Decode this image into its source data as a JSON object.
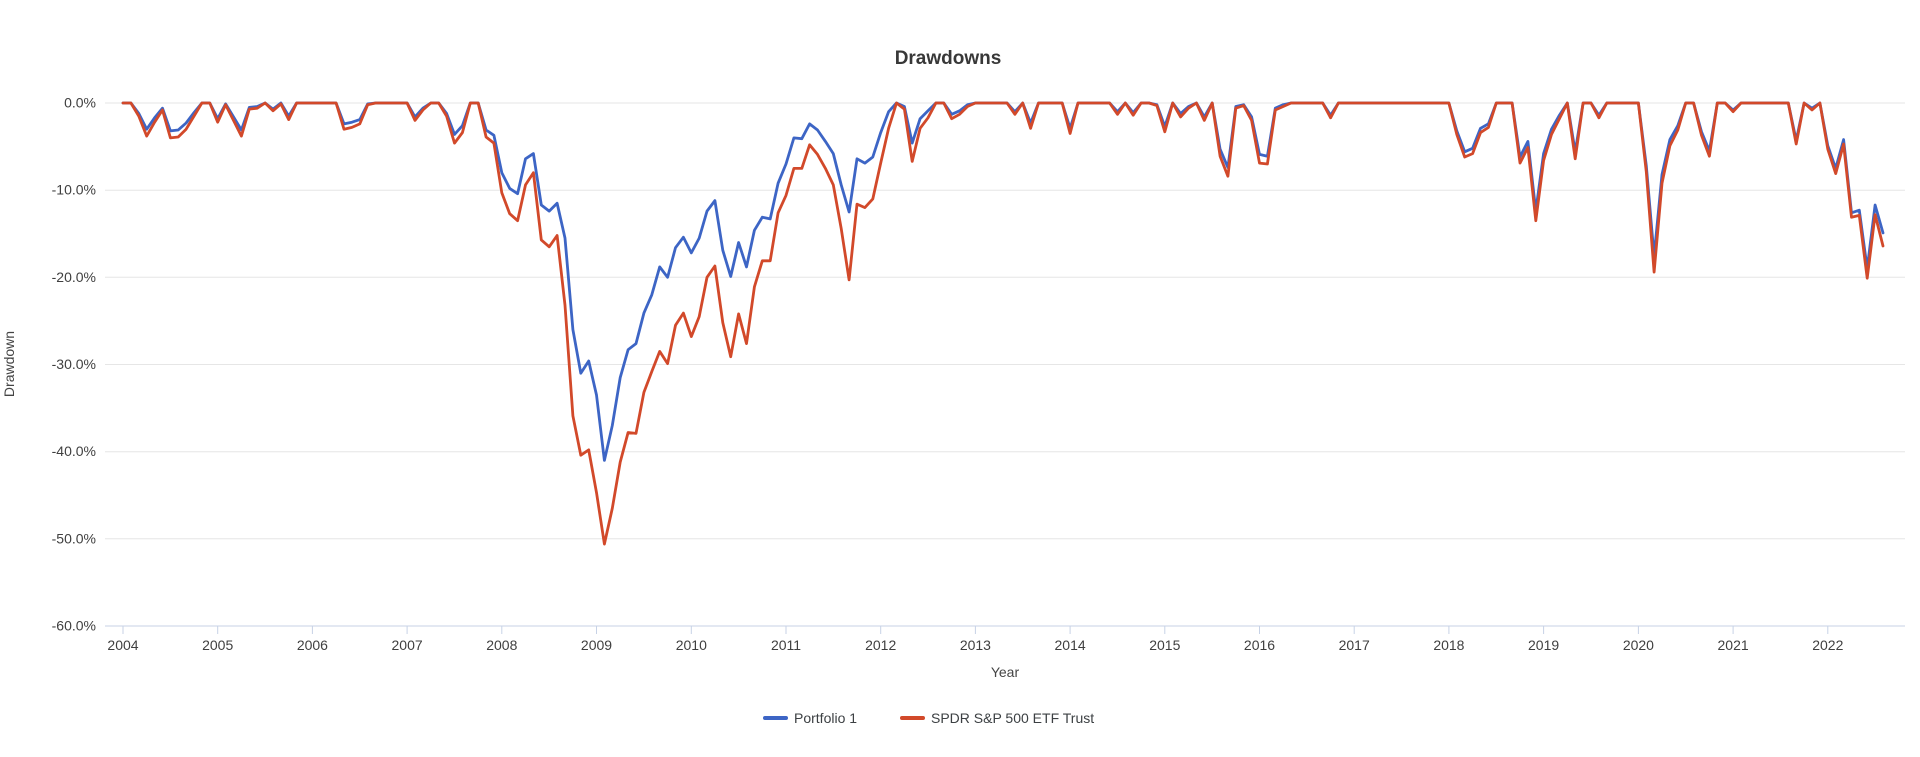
{
  "chart_data": {
    "type": "line",
    "title": "Drawdowns",
    "xlabel": "Year",
    "ylabel": "Drawdown",
    "x_start": "2004-01",
    "x_end": "2022-08",
    "x_frequency": "monthly",
    "ylim": [
      -60,
      0
    ],
    "grid": "horizontal",
    "legend_position": "bottom",
    "x_tick_labels": [
      "2004",
      "2005",
      "2006",
      "2007",
      "2008",
      "2009",
      "2010",
      "2011",
      "2012",
      "2013",
      "2014",
      "2015",
      "2016",
      "2017",
      "2018",
      "2019",
      "2020",
      "2021",
      "2022"
    ],
    "y_tick_labels": [
      "0.0%",
      "-10.0%",
      "-20.0%",
      "-30.0%",
      "-40.0%",
      "-50.0%",
      "-60.0%"
    ],
    "y_tick_values": [
      0,
      -10,
      -20,
      -30,
      -40,
      -50,
      -60
    ],
    "colors": {
      "gridline": "#e6e6e6",
      "axis_line": "#c7d2e6",
      "tick_text": "#3f3f3f",
      "title_text": "#383838",
      "background": "#ffffff"
    },
    "series": [
      {
        "name": "Portfolio 1",
        "color": "#3d65c5",
        "values": [
          0,
          0,
          -1.2,
          -3.0,
          -1.7,
          -0.6,
          -3.2,
          -3.1,
          -2.3,
          -1.1,
          0,
          0,
          -1.8,
          -0.1,
          -1.6,
          -3.1,
          -0.5,
          -0.4,
          0,
          -0.7,
          0,
          -1.5,
          0,
          0,
          0,
          0,
          0,
          0,
          -2.4,
          -2.2,
          -1.9,
          -0.1,
          0,
          0,
          0,
          0,
          0,
          -1.6,
          -0.6,
          0,
          0,
          -1.2,
          -3.6,
          -2.6,
          0,
          0,
          -3.1,
          -3.7,
          -8.0,
          -9.8,
          -10.4,
          -6.4,
          -5.8,
          -11.7,
          -12.4,
          -11.5,
          -15.5,
          -26.0,
          -31.0,
          -29.6,
          -33.5,
          -41.0,
          -37.0,
          -31.5,
          -28.3,
          -27.6,
          -24.1,
          -22.0,
          -18.8,
          -20.0,
          -16.6,
          -15.4,
          -17.2,
          -15.5,
          -12.4,
          -11.2,
          -16.9,
          -19.9,
          -16.0,
          -18.8,
          -14.6,
          -13.1,
          -13.3,
          -9.2,
          -7.0,
          -4.0,
          -4.1,
          -2.4,
          -3.1,
          -4.4,
          -5.8,
          -9.4,
          -12.5,
          -6.4,
          -6.9,
          -6.2,
          -3.4,
          -1.0,
          0,
          -0.4,
          -4.6,
          -1.8,
          -0.9,
          0,
          0,
          -1.3,
          -0.9,
          -0.2,
          0,
          0,
          0,
          0,
          0,
          -1.0,
          0,
          -2.3,
          0,
          0,
          0,
          0,
          -2.9,
          0,
          0,
          0,
          0,
          0,
          -1.0,
          0,
          -1.1,
          0,
          0,
          -0.2,
          -2.7,
          0,
          -1.2,
          -0.4,
          0,
          -1.6,
          0,
          -5.3,
          -7.4,
          -0.4,
          -0.2,
          -1.6,
          -5.9,
          -6.1,
          -0.6,
          -0.2,
          0,
          0,
          0,
          0,
          0,
          -1.4,
          0,
          0,
          0,
          0,
          0,
          0,
          0,
          0,
          0,
          0,
          0,
          0,
          0,
          0,
          0,
          -3.2,
          -5.6,
          -5.2,
          -2.9,
          -2.4,
          0,
          0,
          0,
          -6.2,
          -4.4,
          -12.4,
          -5.8,
          -3.0,
          -1.4,
          0,
          -5.6,
          0,
          0,
          -1.4,
          0,
          0,
          0,
          0,
          0,
          -7.2,
          -17.6,
          -8.2,
          -4.2,
          -2.6,
          0,
          0,
          -3.3,
          -5.5,
          0,
          0,
          -0.8,
          0,
          0,
          0,
          0,
          0,
          0,
          0,
          -4.3,
          0,
          -0.6,
          0,
          -4.9,
          -7.5,
          -4.2,
          -12.6,
          -12.3,
          -19.0,
          -11.7,
          -14.9
        ]
      },
      {
        "name": "SPDR S&P 500 ETF Trust",
        "color": "#d2492a",
        "values": [
          0,
          0,
          -1.5,
          -3.8,
          -2.2,
          -0.8,
          -4.0,
          -3.9,
          -3.0,
          -1.5,
          0,
          0,
          -2.2,
          -0.2,
          -2.0,
          -3.8,
          -0.7,
          -0.6,
          0,
          -0.9,
          -0.1,
          -1.9,
          0,
          0,
          0,
          0,
          0,
          0,
          -3.0,
          -2.8,
          -2.4,
          -0.2,
          0,
          0,
          0,
          0,
          0,
          -2.0,
          -0.8,
          0,
          0,
          -1.5,
          -4.6,
          -3.4,
          0,
          0,
          -3.9,
          -4.6,
          -10.3,
          -12.7,
          -13.5,
          -9.4,
          -8.0,
          -15.7,
          -16.5,
          -15.2,
          -23.2,
          -35.9,
          -40.4,
          -39.8,
          -44.7,
          -50.6,
          -46.5,
          -41.2,
          -37.8,
          -37.9,
          -33.2,
          -30.8,
          -28.5,
          -29.9,
          -25.5,
          -24.1,
          -26.8,
          -24.5,
          -20.0,
          -18.7,
          -25.2,
          -29.1,
          -24.2,
          -27.6,
          -21.1,
          -18.1,
          -18.1,
          -12.6,
          -10.6,
          -7.5,
          -7.5,
          -4.8,
          -5.9,
          -7.5,
          -9.4,
          -14.4,
          -20.3,
          -11.6,
          -12.0,
          -11.0,
          -6.9,
          -2.9,
          0,
          -0.7,
          -6.7,
          -2.9,
          -1.7,
          0,
          0,
          -1.8,
          -1.3,
          -0.4,
          0,
          0,
          0,
          0,
          0,
          -1.3,
          0,
          -2.9,
          0,
          0,
          0,
          0,
          -3.5,
          0,
          0,
          0,
          0,
          0,
          -1.3,
          0,
          -1.4,
          0,
          0,
          -0.3,
          -3.3,
          0,
          -1.6,
          -0.6,
          0,
          -2.0,
          0,
          -6.1,
          -8.4,
          -0.6,
          -0.3,
          -2.0,
          -6.9,
          -7.0,
          -0.8,
          -0.4,
          0,
          0,
          0,
          0,
          0,
          -1.7,
          0,
          0,
          0,
          0,
          0,
          0,
          0,
          0,
          0,
          0,
          0,
          0,
          0,
          0,
          0,
          -3.6,
          -6.2,
          -5.8,
          -3.4,
          -2.8,
          0,
          0,
          0,
          -6.9,
          -5.1,
          -13.5,
          -6.6,
          -3.6,
          -1.8,
          0,
          -6.4,
          0,
          0,
          -1.7,
          0,
          0,
          0,
          0,
          0,
          -7.9,
          -19.4,
          -9.2,
          -4.9,
          -3.1,
          0,
          0,
          -3.7,
          -6.1,
          0,
          0,
          -1.0,
          0,
          0,
          0,
          0,
          0,
          0,
          0,
          -4.7,
          0,
          -0.8,
          0,
          -5.3,
          -8.1,
          -4.7,
          -13.1,
          -12.9,
          -20.1,
          -12.8,
          -16.4
        ]
      }
    ]
  }
}
